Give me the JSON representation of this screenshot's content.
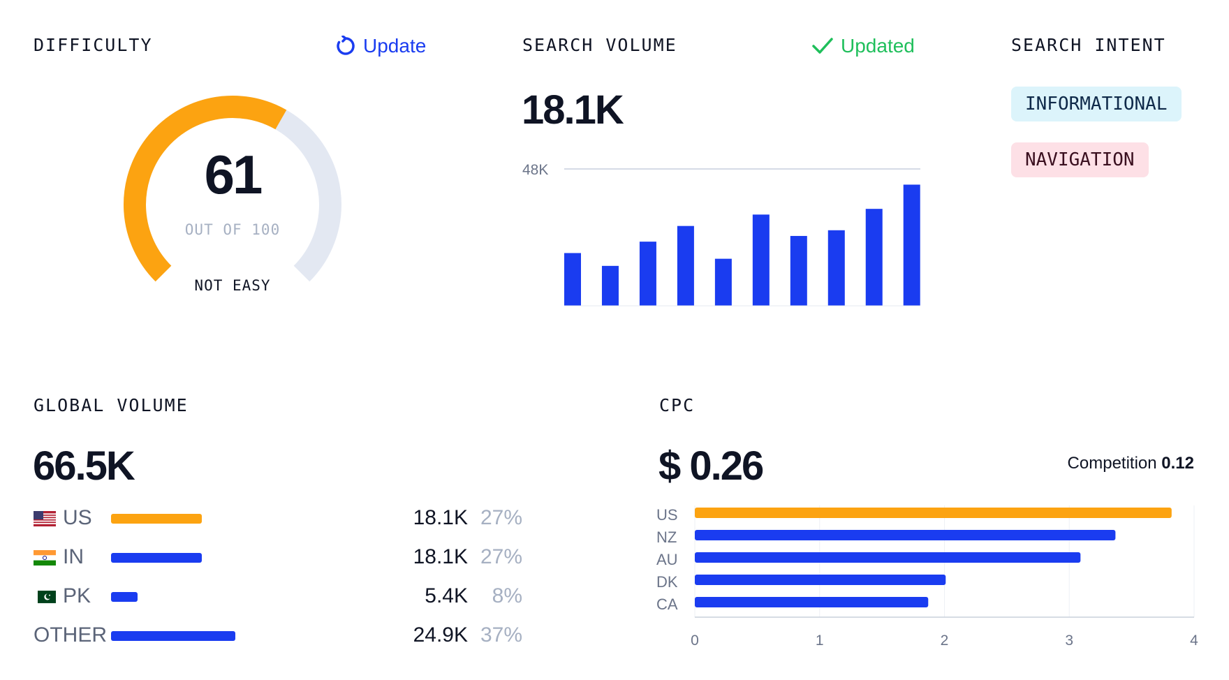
{
  "difficulty": {
    "label": "DIFFICULTY",
    "update_label": "Update",
    "score": "61",
    "score_value": 61,
    "out_of": "OUT OF 100",
    "rating": "NOT EASY",
    "colors": {
      "fill": "#fca311",
      "track": "#e3e8f2",
      "action": "#1a3cf0"
    }
  },
  "search_volume": {
    "label": "SEARCH VOLUME",
    "status_label": "Updated",
    "value": "18.1K",
    "colors": {
      "bar": "#1a3cf0",
      "status": "#1fbf5b"
    }
  },
  "chart_data": {
    "type": "bar",
    "title": "",
    "ylabel": "",
    "xlabel": "",
    "ymax_label": "48K",
    "ylim": [
      0,
      48000
    ],
    "values": [
      18500,
      14000,
      22500,
      28000,
      16500,
      32000,
      24500,
      26500,
      34000,
      42500
    ]
  },
  "search_intent": {
    "label": "SEARCH INTENT",
    "tags": [
      {
        "label": "INFORMATIONAL",
        "bg": "#dcf4fb",
        "fg": "#0f2a4a"
      },
      {
        "label": "NAVIGATION",
        "bg": "#fde0e6",
        "fg": "#3a0f1f"
      }
    ]
  },
  "global_volume": {
    "label": "GLOBAL VOLUME",
    "value": "66.5K",
    "rows": [
      {
        "country": "US",
        "value": "18.1K",
        "pct": "27%",
        "share": 27,
        "color": "#fca311"
      },
      {
        "country": "IN",
        "value": "18.1K",
        "pct": "27%",
        "share": 27,
        "color": "#1a3cf0"
      },
      {
        "country": "PK",
        "value": "5.4K",
        "pct": "8%",
        "share": 8,
        "color": "#1a3cf0"
      },
      {
        "country": "OTHER",
        "value": "24.9K",
        "pct": "37%",
        "share": 37,
        "color": "#1a3cf0"
      }
    ]
  },
  "cpc": {
    "label": "CPC",
    "value": "$ 0.26",
    "competition_label": "Competition",
    "competition_value": "0.12",
    "chart": {
      "categories": [
        "US",
        "NZ",
        "AU",
        "DK",
        "CA"
      ],
      "values": [
        3.82,
        3.37,
        3.09,
        2.01,
        1.87
      ],
      "colors": [
        "#fca311",
        "#1a3cf0",
        "#1a3cf0",
        "#1a3cf0",
        "#1a3cf0"
      ],
      "ticks": [
        "0",
        "1",
        "2",
        "3",
        "4"
      ],
      "xlim": [
        0,
        4
      ]
    }
  }
}
